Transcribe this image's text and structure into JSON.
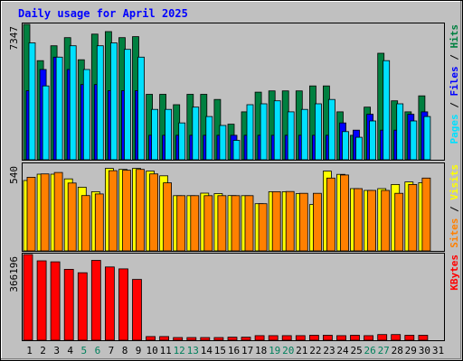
{
  "chart_data": {
    "type": "bar",
    "title": "Daily usage for April 2025",
    "x": [
      "1",
      "2",
      "3",
      "4",
      "5",
      "6",
      "7",
      "8",
      "9",
      "10",
      "11",
      "12",
      "13",
      "14",
      "15",
      "16",
      "17",
      "18",
      "19",
      "20",
      "21",
      "22",
      "23",
      "24",
      "25",
      "26",
      "27",
      "28",
      "29",
      "30",
      "31"
    ],
    "weekend_days": [
      "5",
      "6",
      "12",
      "13",
      "19",
      "20",
      "26",
      "27"
    ],
    "colors": {
      "hits": "#008040",
      "files": "#0000ff",
      "pages": "#00e0ff",
      "visits": "#ffff00",
      "sites": "#ff8000",
      "kbytes": "#ff0000",
      "title": "#0000ff",
      "weekend_label": "#00805c",
      "plot_bg": "#c0c0c0",
      "page_bg": "#c0c0c0"
    },
    "panels": [
      {
        "id": "requests",
        "ymax_label": "7347",
        "ymax": 7347,
        "label_parts": [
          {
            "text": "Pages",
            "color": "#00e0ff"
          },
          {
            "text": " / ",
            "color": "#000000"
          },
          {
            "text": "Files",
            "color": "#0000ff"
          },
          {
            "text": " / ",
            "color": "#000000"
          },
          {
            "text": "Hits",
            "color": "#008040"
          }
        ],
        "series": [
          {
            "name": "Hits",
            "color": "#008040",
            "values": [
              7347,
              5376,
              6187,
              6626,
              5429,
              6818,
              6956,
              6626,
              6681,
              3549,
              3549,
              2988,
              3549,
              3549,
              3274,
              1929,
              2601,
              3669,
              3737,
              3737,
              3737,
              4005,
              4005,
              2601,
              1325,
              2855,
              5781,
              3198,
              2601,
              3469,
              null
            ]
          },
          {
            "name": "Files",
            "color": "#0000ff",
            "values": [
              3749,
              4898,
              5567,
              4898,
              4082,
              4082,
              3749,
              3749,
              3749,
              1325,
              1325,
              1325,
              1325,
              1325,
              1325,
              1325,
              1325,
              1325,
              1325,
              1325,
              1325,
              1325,
              1325,
              1999,
              1606,
              2467,
              1606,
              1606,
              2467,
              2601,
              null
            ]
          },
          {
            "name": "Pages",
            "color": "#00e0ff",
            "values": [
              6341,
              4005,
              5567,
              6187,
              4898,
              6187,
              6341,
              5990,
              5567,
              2734,
              2734,
              1999,
              2855,
              2347,
              1861,
              1055,
              2988,
              3039,
              3198,
              2601,
              2734,
              3039,
              3274,
              1530,
              1218,
              2107,
              5376,
              3039,
              2107,
              2347,
              null
            ]
          }
        ]
      },
      {
        "id": "visitors",
        "ymax_label": "540",
        "ymax": 540,
        "label_parts": [
          {
            "text": "Sites",
            "color": "#ff8000"
          },
          {
            "text": " / ",
            "color": "#000000"
          },
          {
            "text": "Visits",
            "color": "#ffff00"
          }
        ],
        "series": [
          {
            "name": "Visits",
            "color": "#ffff00",
            "values": [
              439,
              478,
              478,
              449,
              397,
              369,
              514,
              508,
              514,
              497,
              468,
              344,
              344,
              360,
              357,
              345,
              344,
              294,
              369,
              369,
              357,
              289,
              497,
              477,
              388,
              377,
              388,
              414,
              430,
              425,
              null
            ]
          },
          {
            "name": "Sites",
            "color": "#ff8000",
            "values": [
              459,
              480,
              489,
              423,
              345,
              355,
              500,
              503,
              508,
              480,
              424,
              344,
              344,
              344,
              344,
              344,
              344,
              294,
              369,
              370,
              359,
              359,
              454,
              473,
              388,
              377,
              377,
              359,
              414,
              454,
              null
            ]
          }
        ]
      },
      {
        "id": "kbytes",
        "ymax_label": "366196",
        "ymax": 366196,
        "label_parts": [
          {
            "text": "KBytes",
            "color": "#ff0000"
          }
        ],
        "series": [
          {
            "name": "KBytes",
            "color": "#ff0000",
            "values": [
              366196,
              339027,
              334786,
              303054,
              288436,
              341124,
              312945,
              305001,
              259998,
              15672,
              15672,
              11486,
              11486,
              11486,
              11486,
              13061,
              13061,
              19573,
              19573,
              19573,
              19573,
              21167,
              21167,
              19573,
              21167,
              19573,
              24316,
              24316,
              21167,
              21167,
              null
            ]
          }
        ]
      }
    ]
  }
}
